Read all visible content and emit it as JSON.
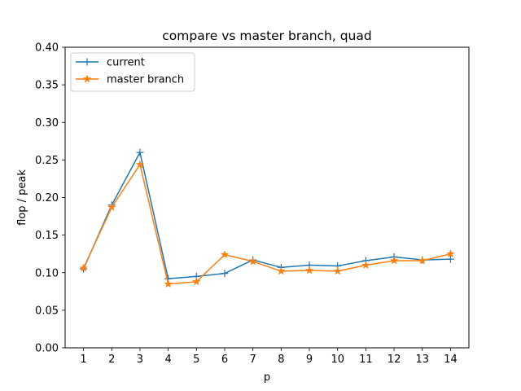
{
  "chart_data": {
    "type": "line",
    "title": "compare vs master branch, quad",
    "xlabel": "p",
    "ylabel": "flop / peak",
    "x": [
      1,
      2,
      3,
      4,
      5,
      6,
      7,
      8,
      9,
      10,
      11,
      12,
      13,
      14
    ],
    "x_tick_labels": [
      "1",
      "2",
      "3",
      "4",
      "5",
      "6",
      "7",
      "8",
      "9",
      "10",
      "11",
      "12",
      "13",
      "14"
    ],
    "ylim": [
      0.0,
      0.4
    ],
    "y_tick_labels": [
      "0.00",
      "0.05",
      "0.10",
      "0.15",
      "0.20",
      "0.25",
      "0.30",
      "0.35",
      "0.40"
    ],
    "grid": false,
    "legend_position": "top-left",
    "series": [
      {
        "name": "current",
        "color": "#1f77b4",
        "marker": "plus",
        "values": [
          0.105,
          0.19,
          0.26,
          0.092,
          0.095,
          0.099,
          0.117,
          0.107,
          0.11,
          0.109,
          0.116,
          0.121,
          0.117,
          0.118
        ]
      },
      {
        "name": "master branch",
        "color": "#ff7f0e",
        "marker": "star",
        "values": [
          0.106,
          0.187,
          0.244,
          0.085,
          0.088,
          0.124,
          0.115,
          0.102,
          0.103,
          0.102,
          0.11,
          0.116,
          0.116,
          0.125
        ]
      }
    ]
  }
}
